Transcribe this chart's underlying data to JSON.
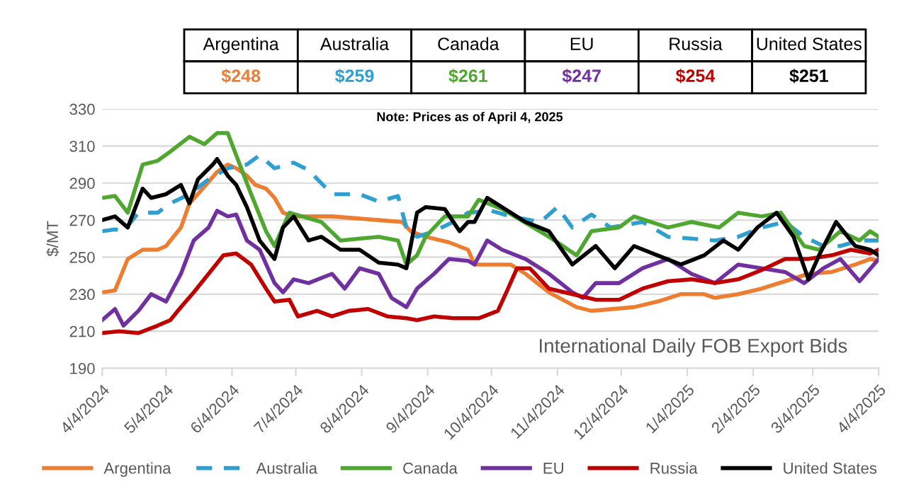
{
  "chart_data": {
    "type": "line",
    "ylabel": "$/MT",
    "ylim": [
      190,
      330
    ],
    "yticks": [
      190,
      210,
      230,
      250,
      270,
      290,
      310,
      330
    ],
    "xlim": [
      "2024-04-04",
      "2025-04-04"
    ],
    "xticks": [
      {
        "value": "2024-04-04",
        "label": "4/4/2024"
      },
      {
        "value": "2024-05-04",
        "label": "5/4/2024"
      },
      {
        "value": "2024-06-04",
        "label": "6/4/2024"
      },
      {
        "value": "2024-07-04",
        "label": "7/4/2024"
      },
      {
        "value": "2024-08-04",
        "label": "8/4/2024"
      },
      {
        "value": "2024-09-04",
        "label": "9/4/2024"
      },
      {
        "value": "2024-10-04",
        "label": "10/4/2024"
      },
      {
        "value": "2024-11-04",
        "label": "11/4/2024"
      },
      {
        "value": "2024-12-04",
        "label": "12/4/2024"
      },
      {
        "value": "2025-01-04",
        "label": "1/4/2025"
      },
      {
        "value": "2025-02-04",
        "label": "2/4/2025"
      },
      {
        "value": "2025-03-04",
        "label": "3/4/2025"
      },
      {
        "value": "2025-04-04",
        "label": "4/4/2025"
      }
    ],
    "grid": "y",
    "legend": "bottom",
    "marker": "none",
    "annotations": [
      "$248",
      "$259",
      "$261",
      "$247",
      "$254",
      "$251",
      "Note: Prices as of April 4, 2025",
      "International Daily FOB Export Bids"
    ],
    "series": [
      {
        "name": "Argentina",
        "color": "#ed7d31",
        "line_style": "solid",
        "x": [
          "2024-04-04",
          "2024-04-10",
          "2024-04-16",
          "2024-04-23",
          "2024-04-30",
          "2024-05-04",
          "2024-05-11",
          "2024-05-15",
          "2024-05-22",
          "2024-05-28",
          "2024-06-02",
          "2024-06-06",
          "2024-06-11",
          "2024-06-15",
          "2024-06-20",
          "2024-06-24",
          "2024-06-28",
          "2024-07-03",
          "2024-07-21",
          "2024-08-12",
          "2024-08-23",
          "2024-08-27",
          "2024-09-03",
          "2024-09-14",
          "2024-09-23",
          "2024-09-26",
          "2024-10-13",
          "2024-10-20",
          "2024-10-31",
          "2024-11-13",
          "2024-11-20",
          "2024-12-10",
          "2024-12-21",
          "2025-01-01",
          "2025-01-12",
          "2025-01-17",
          "2025-01-28",
          "2025-02-08",
          "2025-02-19",
          "2025-03-02",
          "2025-03-13",
          "2025-03-24",
          "2025-03-31",
          "2025-04-04"
        ],
        "values": [
          231,
          232,
          249,
          254,
          254,
          256,
          266,
          279,
          288,
          296,
          300,
          298,
          294,
          289,
          287,
          282,
          274,
          272,
          272,
          270,
          269,
          264,
          261,
          258,
          254,
          246,
          246,
          241,
          231,
          223,
          221,
          223,
          226,
          230,
          230,
          228,
          230,
          233,
          237,
          241,
          242,
          246,
          249,
          248
        ]
      },
      {
        "name": "Australia",
        "color": "#2e9fd0",
        "line_style": "dashed",
        "x": [
          "2024-04-04",
          "2024-04-10",
          "2024-04-14",
          "2024-04-21",
          "2024-04-30",
          "2024-05-06",
          "2024-05-15",
          "2024-05-24",
          "2024-06-02",
          "2024-06-11",
          "2024-06-17",
          "2024-06-24",
          "2024-07-03",
          "2024-07-10",
          "2024-07-21",
          "2024-08-03",
          "2024-08-12",
          "2024-08-21",
          "2024-08-25",
          "2024-08-30",
          "2024-09-07",
          "2024-09-16",
          "2024-09-23",
          "2024-10-04",
          "2024-10-13",
          "2024-10-27",
          "2024-11-04",
          "2024-11-11",
          "2024-11-20",
          "2024-11-29",
          "2024-12-14",
          "2024-12-26",
          "2025-01-06",
          "2025-01-17",
          "2025-01-28",
          "2025-02-08",
          "2025-02-19",
          "2025-02-28",
          "2025-03-09",
          "2025-03-17",
          "2025-03-26",
          "2025-04-04"
        ],
        "values": [
          264,
          265,
          264,
          274,
          274,
          279,
          284,
          292,
          298,
          300,
          305,
          298,
          301,
          297,
          284,
          284,
          280,
          283,
          266,
          261,
          264,
          269,
          274,
          275,
          272,
          269,
          277,
          266,
          273,
          266,
          269,
          261,
          260,
          259,
          261,
          266,
          269,
          261,
          256,
          256,
          259,
          259
        ]
      },
      {
        "name": "Canada",
        "color": "#4ea72e",
        "line_style": "solid",
        "x": [
          "2024-04-04",
          "2024-04-10",
          "2024-04-16",
          "2024-04-23",
          "2024-04-30",
          "2024-05-06",
          "2024-05-15",
          "2024-05-22",
          "2024-05-28",
          "2024-06-02",
          "2024-06-06",
          "2024-06-13",
          "2024-06-20",
          "2024-06-24",
          "2024-07-01",
          "2024-07-07",
          "2024-07-16",
          "2024-07-25",
          "2024-08-03",
          "2024-08-12",
          "2024-08-21",
          "2024-08-25",
          "2024-08-30",
          "2024-09-03",
          "2024-09-12",
          "2024-09-23",
          "2024-09-28",
          "2024-10-09",
          "2024-10-31",
          "2024-11-13",
          "2024-11-20",
          "2024-12-03",
          "2024-12-10",
          "2024-12-26",
          "2025-01-06",
          "2025-01-19",
          "2025-01-28",
          "2025-02-08",
          "2025-02-17",
          "2025-02-28",
          "2025-03-07",
          "2025-03-17",
          "2025-03-26",
          "2025-03-31",
          "2025-04-04"
        ],
        "values": [
          282,
          283,
          274,
          300,
          302,
          307,
          315,
          311,
          317,
          317,
          305,
          284,
          264,
          256,
          274,
          272,
          269,
          259,
          260,
          261,
          259,
          246,
          251,
          261,
          272,
          272,
          281,
          276,
          261,
          251,
          264,
          266,
          272,
          266,
          269,
          266,
          274,
          272,
          274,
          256,
          254,
          264,
          259,
          264,
          261
        ]
      },
      {
        "name": "EU",
        "color": "#7030a0",
        "line_style": "solid",
        "x": [
          "2024-04-04",
          "2024-04-10",
          "2024-04-14",
          "2024-04-21",
          "2024-04-27",
          "2024-05-04",
          "2024-05-11",
          "2024-05-17",
          "2024-05-24",
          "2024-05-28",
          "2024-06-02",
          "2024-06-06",
          "2024-06-11",
          "2024-06-17",
          "2024-06-24",
          "2024-06-28",
          "2024-07-03",
          "2024-07-10",
          "2024-07-21",
          "2024-07-27",
          "2024-08-03",
          "2024-08-12",
          "2024-08-18",
          "2024-08-25",
          "2024-08-30",
          "2024-09-07",
          "2024-09-14",
          "2024-09-23",
          "2024-09-26",
          "2024-10-02",
          "2024-10-09",
          "2024-10-20",
          "2024-10-31",
          "2024-11-11",
          "2024-11-16",
          "2024-11-22",
          "2024-12-03",
          "2024-12-14",
          "2024-12-26",
          "2025-01-06",
          "2025-01-17",
          "2025-01-28",
          "2025-02-08",
          "2025-02-19",
          "2025-02-28",
          "2025-03-09",
          "2025-03-17",
          "2025-03-26",
          "2025-04-04"
        ],
        "values": [
          216,
          222,
          213,
          221,
          230,
          226,
          241,
          259,
          266,
          275,
          272,
          273,
          259,
          254,
          236,
          231,
          238,
          236,
          241,
          233,
          244,
          241,
          228,
          223,
          233,
          241,
          249,
          248,
          246,
          259,
          254,
          249,
          241,
          231,
          228,
          236,
          236,
          244,
          249,
          241,
          236,
          246,
          244,
          242,
          236,
          244,
          249,
          237,
          249
        ]
      },
      {
        "name": "Russia",
        "color": "#c00000",
        "line_style": "solid",
        "x": [
          "2024-04-04",
          "2024-04-12",
          "2024-04-21",
          "2024-04-30",
          "2024-05-06",
          "2024-05-11",
          "2024-05-17",
          "2024-05-24",
          "2024-05-31",
          "2024-06-06",
          "2024-06-13",
          "2024-06-20",
          "2024-06-24",
          "2024-07-01",
          "2024-07-05",
          "2024-07-14",
          "2024-07-21",
          "2024-07-29",
          "2024-08-07",
          "2024-08-16",
          "2024-08-25",
          "2024-08-30",
          "2024-09-07",
          "2024-09-16",
          "2024-09-23",
          "2024-09-28",
          "2024-10-07",
          "2024-10-11",
          "2024-10-16",
          "2024-10-22",
          "2024-10-31",
          "2024-11-11",
          "2024-11-22",
          "2024-12-03",
          "2024-12-14",
          "2024-12-26",
          "2025-01-06",
          "2025-01-17",
          "2025-01-28",
          "2025-02-08",
          "2025-02-19",
          "2025-03-02",
          "2025-03-13",
          "2025-03-22",
          "2025-03-31",
          "2025-04-04"
        ],
        "values": [
          209,
          210,
          209,
          213,
          216,
          223,
          231,
          241,
          251,
          252,
          246,
          233,
          226,
          227,
          218,
          221,
          218,
          221,
          222,
          218,
          217,
          216,
          218,
          217,
          217,
          217,
          221,
          231,
          244,
          244,
          233,
          230,
          227,
          227,
          233,
          237,
          238,
          236,
          238,
          243,
          249,
          249,
          251,
          254,
          252,
          254
        ]
      },
      {
        "name": "United States",
        "color": "#000000",
        "line_style": "solid",
        "x": [
          "2024-04-04",
          "2024-04-10",
          "2024-04-16",
          "2024-04-23",
          "2024-04-27",
          "2024-05-04",
          "2024-05-11",
          "2024-05-15",
          "2024-05-19",
          "2024-05-26",
          "2024-05-28",
          "2024-06-02",
          "2024-06-06",
          "2024-06-11",
          "2024-06-17",
          "2024-06-24",
          "2024-06-28",
          "2024-07-03",
          "2024-07-10",
          "2024-07-16",
          "2024-07-25",
          "2024-08-03",
          "2024-08-12",
          "2024-08-21",
          "2024-08-25",
          "2024-08-30",
          "2024-09-03",
          "2024-09-12",
          "2024-09-19",
          "2024-09-23",
          "2024-09-26",
          "2024-10-02",
          "2024-10-09",
          "2024-10-20",
          "2024-10-31",
          "2024-11-11",
          "2024-11-22",
          "2024-12-01",
          "2024-12-10",
          "2024-12-21",
          "2025-01-01",
          "2025-01-12",
          "2025-01-21",
          "2025-01-28",
          "2025-02-06",
          "2025-02-15",
          "2025-02-23",
          "2025-03-02",
          "2025-03-07",
          "2025-03-15",
          "2025-03-24",
          "2025-03-31",
          "2025-04-04"
        ],
        "values": [
          270,
          272,
          266,
          287,
          282,
          284,
          289,
          279,
          292,
          300,
          303,
          294,
          289,
          277,
          259,
          249,
          266,
          272,
          259,
          261,
          254,
          254,
          247,
          246,
          244,
          274,
          277,
          276,
          264,
          269,
          269,
          282,
          277,
          269,
          264,
          246,
          256,
          244,
          256,
          251,
          246,
          251,
          259,
          254,
          266,
          274,
          261,
          238,
          251,
          269,
          256,
          254,
          251
        ]
      }
    ]
  }
}
